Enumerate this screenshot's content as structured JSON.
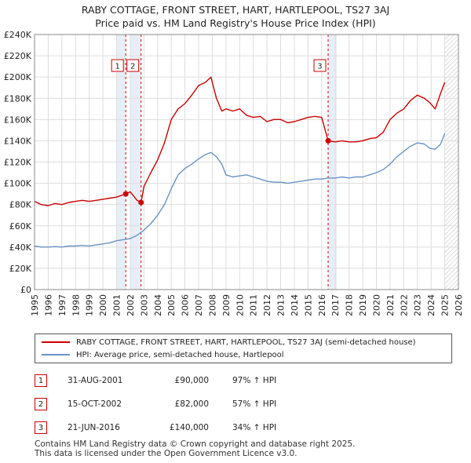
{
  "header": {
    "title_line1": "RABY COTTAGE, FRONT STREET, HART, HARTLEPOOL, TS27 3AJ",
    "title_line2": "Price paid vs. HM Land Registry's House Price Index (HPI)"
  },
  "chart_data": {
    "type": "line",
    "xlim": [
      1995,
      2026
    ],
    "ylim": [
      0,
      240000
    ],
    "x_ticks": [
      1995,
      1996,
      1997,
      1998,
      1999,
      2000,
      2001,
      2002,
      2003,
      2004,
      2005,
      2006,
      2007,
      2008,
      2009,
      2010,
      2011,
      2012,
      2013,
      2014,
      2015,
      2016,
      2017,
      2018,
      2019,
      2020,
      2021,
      2022,
      2023,
      2024,
      2025,
      2026
    ],
    "y_ticks": [
      0,
      20000,
      40000,
      60000,
      80000,
      100000,
      120000,
      140000,
      160000,
      180000,
      200000,
      220000,
      240000
    ],
    "y_tick_labels": [
      "£0",
      "£20K",
      "£40K",
      "£60K",
      "£80K",
      "£100K",
      "£120K",
      "£140K",
      "£160K",
      "£180K",
      "£200K",
      "£220K",
      "£240K"
    ],
    "colors": {
      "property": "#cc0000",
      "hpi": "#6a93c4",
      "grid": "#dddddd",
      "shade": "#e8eef7",
      "hatch": "#bbbbbb"
    },
    "shaded_spans": [
      [
        2001.0,
        2001.67
      ],
      [
        2002.0,
        2002.79
      ],
      [
        2016.47,
        2017.1
      ]
    ],
    "data_end": 2025.0,
    "series": [
      {
        "name": "RABY COTTAGE, FRONT STREET, HART, HARTLEPOOL, TS27 3AJ (semi-detached house)",
        "color": "#cc0000",
        "x": [
          1995.0,
          1995.5,
          1996.0,
          1996.5,
          1997.0,
          1997.5,
          1998.0,
          1998.5,
          1999.0,
          1999.5,
          2000.0,
          2000.5,
          2001.0,
          2001.67,
          2002.0,
          2002.5,
          2002.79,
          2003.0,
          2003.5,
          2004.0,
          2004.5,
          2005.0,
          2005.5,
          2006.0,
          2006.5,
          2007.0,
          2007.5,
          2007.9,
          2008.3,
          2008.7,
          2009.0,
          2009.5,
          2010.0,
          2010.5,
          2011.0,
          2011.5,
          2012.0,
          2012.5,
          2013.0,
          2013.5,
          2014.0,
          2014.5,
          2015.0,
          2015.5,
          2016.0,
          2016.47,
          2017.0,
          2017.5,
          2018.0,
          2018.5,
          2019.0,
          2019.5,
          2020.0,
          2020.5,
          2021.0,
          2021.5,
          2022.0,
          2022.5,
          2023.0,
          2023.5,
          2023.9,
          2024.3,
          2024.7,
          2025.0
        ],
        "values": [
          83000,
          80000,
          79000,
          81000,
          80000,
          82000,
          83000,
          84000,
          83000,
          84000,
          85000,
          86000,
          87000,
          90000,
          92000,
          84000,
          82000,
          97000,
          110000,
          122000,
          138000,
          160000,
          170000,
          175000,
          183000,
          192000,
          195000,
          200000,
          180000,
          168000,
          170000,
          168000,
          170000,
          164000,
          162000,
          163000,
          158000,
          160000,
          160000,
          157000,
          158000,
          160000,
          162000,
          163000,
          162000,
          140000,
          139000,
          140000,
          139000,
          139000,
          140000,
          142000,
          143000,
          148000,
          160000,
          166000,
          170000,
          178000,
          183000,
          180000,
          176000,
          170000,
          185000,
          195000
        ]
      },
      {
        "name": "HPI: Average price, semi-detached house, Hartlepool",
        "color": "#6a93c4",
        "x": [
          1995.0,
          1995.5,
          1996.0,
          1996.5,
          1997.0,
          1997.5,
          1998.0,
          1998.5,
          1999.0,
          1999.5,
          2000.0,
          2000.5,
          2001.0,
          2001.5,
          2002.0,
          2002.5,
          2003.0,
          2003.5,
          2004.0,
          2004.5,
          2005.0,
          2005.5,
          2006.0,
          2006.5,
          2007.0,
          2007.5,
          2007.9,
          2008.3,
          2008.7,
          2009.0,
          2009.5,
          2010.0,
          2010.5,
          2011.0,
          2011.5,
          2012.0,
          2012.5,
          2013.0,
          2013.5,
          2014.0,
          2014.5,
          2015.0,
          2015.5,
          2016.0,
          2016.5,
          2017.0,
          2017.5,
          2018.0,
          2018.5,
          2019.0,
          2019.5,
          2020.0,
          2020.5,
          2021.0,
          2021.5,
          2022.0,
          2022.5,
          2023.0,
          2023.5,
          2023.9,
          2024.3,
          2024.7,
          2025.0
        ],
        "values": [
          41000,
          40000,
          40000,
          40500,
          40000,
          41000,
          41000,
          41500,
          41000,
          42000,
          43000,
          44000,
          46000,
          47000,
          48000,
          51000,
          56000,
          62000,
          70000,
          80000,
          95000,
          108000,
          114000,
          118000,
          123000,
          127000,
          129000,
          125000,
          118000,
          108000,
          106000,
          107000,
          108000,
          106000,
          104000,
          102000,
          101000,
          101000,
          100000,
          101000,
          102000,
          103000,
          104000,
          104000,
          105000,
          105000,
          106000,
          105000,
          106000,
          106000,
          108000,
          110000,
          113000,
          118000,
          125000,
          130000,
          135000,
          138000,
          137000,
          133000,
          132000,
          137000,
          147000
        ]
      }
    ],
    "markers": [
      {
        "label": "1",
        "x": 2001.67,
        "y": 90000
      },
      {
        "label": "2",
        "x": 2002.79,
        "y": 82000
      },
      {
        "label": "3",
        "x": 2016.47,
        "y": 140000
      }
    ]
  },
  "legend": {
    "property_label": "RABY COTTAGE, FRONT STREET, HART, HARTLEPOOL, TS27 3AJ (semi-detached house)",
    "hpi_label": "HPI: Average price, semi-detached house, Hartlepool"
  },
  "transactions": [
    {
      "num": "1",
      "date": "31-AUG-2001",
      "price": "£90,000",
      "hpi": "97% ↑ HPI"
    },
    {
      "num": "2",
      "date": "15-OCT-2002",
      "price": "£82,000",
      "hpi": "57% ↑ HPI"
    },
    {
      "num": "3",
      "date": "21-JUN-2016",
      "price": "£140,000",
      "hpi": "34% ↑ HPI"
    }
  ],
  "footer": {
    "line1": "Contains HM Land Registry data © Crown copyright and database right 2025.",
    "line2": "This data is licensed under the Open Government Licence v3.0."
  }
}
